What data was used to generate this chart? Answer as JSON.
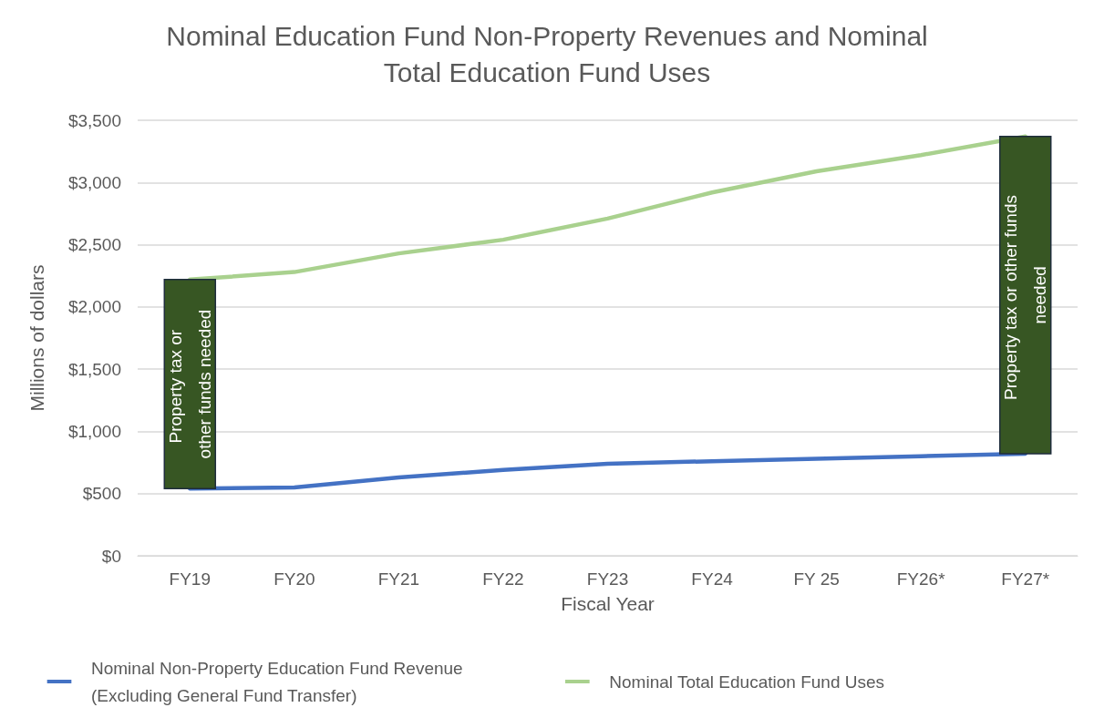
{
  "chart_data": {
    "type": "line",
    "title": "Nominal Education Fund Non-Property Revenues and Nominal\nTotal Education Fund Uses",
    "xlabel": "Fiscal Year",
    "ylabel": "Millions of dollars",
    "categories": [
      "FY19",
      "FY20",
      "FY21",
      "FY22",
      "FY23",
      "FY24",
      "FY 25",
      "FY26*",
      "FY27*"
    ],
    "series": [
      {
        "name": "Nominal Non-Property Education Fund Revenue (Excluding General Fund Transfer)",
        "color": "#4472c4",
        "values": [
          540,
          550,
          630,
          690,
          740,
          760,
          780,
          800,
          820
        ]
      },
      {
        "name": "Nominal Total Education Fund Uses",
        "color": "#a9d18e",
        "values": [
          2220,
          2280,
          2430,
          2540,
          2710,
          2920,
          3090,
          3220,
          3370
        ]
      },
      {
        "type": "bar",
        "color": "#375623",
        "base": [
          540,
          null,
          null,
          null,
          null,
          null,
          null,
          null,
          820
        ],
        "values": [
          1680,
          null,
          null,
          null,
          null,
          null,
          null,
          null,
          2550
        ],
        "value_labels": [
          "Property tax or other funds needed",
          null,
          null,
          null,
          null,
          null,
          null,
          null,
          "Property tax or other funds needed"
        ]
      }
    ],
    "ylim": [
      0,
      3500
    ],
    "yticks": [
      {
        "value": 0,
        "label": "$0"
      },
      {
        "value": 500,
        "label": "$500"
      },
      {
        "value": 1000,
        "label": "$1,000"
      },
      {
        "value": 1500,
        "label": "$1,500"
      },
      {
        "value": 2000,
        "label": "$2,000"
      },
      {
        "value": 2500,
        "label": "$2,500"
      },
      {
        "value": 3000,
        "label": "$3,000"
      },
      {
        "value": 3500,
        "label": "$3,500"
      }
    ],
    "grid": "y",
    "legend": "bottom",
    "marker": "none",
    "line_style": "solid"
  }
}
